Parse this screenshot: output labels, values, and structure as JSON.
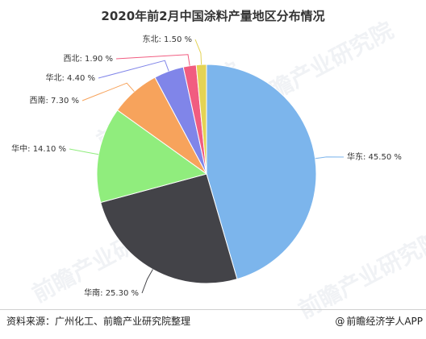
{
  "title": "2020年前2月中国涂料产量地区分布情况",
  "source": "资料来源：广州化工、前瞻产业研究院整理",
  "brand": "前瞻经济学人APP",
  "watermark": "前瞻产业研究院",
  "chart_data": {
    "type": "pie",
    "title": "2020年前2月中国涂料产量地区分布情况",
    "start": "12 o'clock, clockwise",
    "series": [
      {
        "name": "华东",
        "value": 45.5,
        "label": "华东: 45.50 %",
        "color": "#7cb5ec"
      },
      {
        "name": "华南",
        "value": 25.3,
        "label": "华南: 25.30 %",
        "color": "#434348"
      },
      {
        "name": "华中",
        "value": 14.1,
        "label": "华中: 14.10 %",
        "color": "#90ed7d"
      },
      {
        "name": "西南",
        "value": 7.3,
        "label": "西南: 7.30 %",
        "color": "#f7a35c"
      },
      {
        "name": "华北",
        "value": 4.4,
        "label": "华北: 4.40 %",
        "color": "#8085e9"
      },
      {
        "name": "西北",
        "value": 1.9,
        "label": "西北: 1.90 %",
        "color": "#f15c80"
      },
      {
        "name": "东北",
        "value": 1.5,
        "label": "东北: 1.50 %",
        "color": "#e4d354"
      }
    ]
  }
}
